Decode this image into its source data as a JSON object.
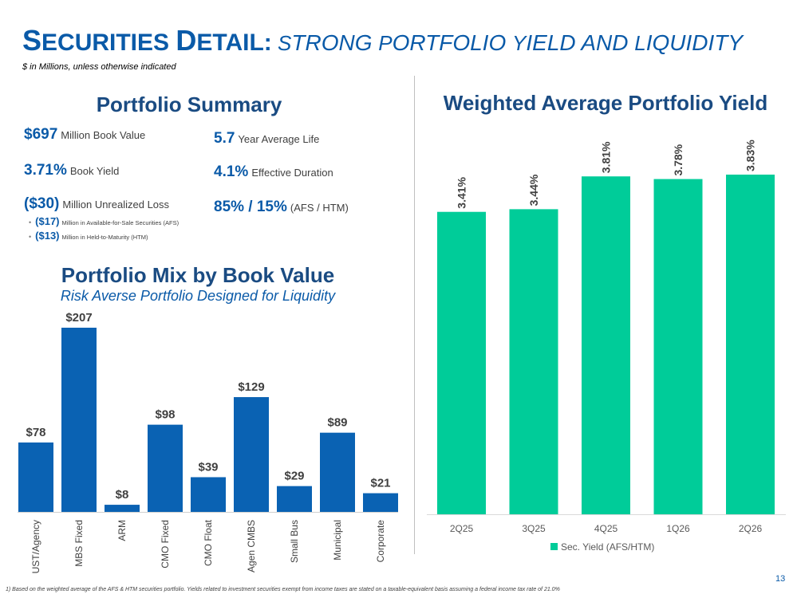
{
  "header": {
    "title_main_initial": "S",
    "title_main_rest": "ECURITIES ",
    "title_second_initial": "D",
    "title_second_rest": "ETAIL:",
    "title_sub": " S|TRONG |P|ORTFOLIO |Y|IELD AND |L|IQUIDITY",
    "units_note": "$ in Millions, unless otherwise indicated"
  },
  "summary": {
    "title": "Portfolio Summary",
    "left_metrics": [
      {
        "value": "$697",
        "label": "Million Book Value"
      },
      {
        "value": "3.71%",
        "label": "Book Yield"
      },
      {
        "value": "($30)",
        "label": "Million Unrealized Loss"
      }
    ],
    "bullets": [
      {
        "value": "($17)",
        "label": "Million in Available-for-Sale Securities (AFS)"
      },
      {
        "value": "($13)",
        "label": "Million in Held-to-Maturity (HTM)"
      }
    ],
    "right_metrics": [
      {
        "value": "5.7",
        "label": "Year Average Life"
      },
      {
        "value": "4.1%",
        "label": "Effective Duration"
      },
      {
        "value": "85% / 15%",
        "label": "(AFS / HTM)"
      }
    ]
  },
  "mix": {
    "title": "Portfolio Mix by Book Value",
    "subtitle": "Risk Averse Portfolio Designed for Liquidity"
  },
  "yield": {
    "title": "Weighted Average Portfolio Yield"
  },
  "chart_data": [
    {
      "type": "bar",
      "title": "Portfolio Mix by Book Value",
      "categories": [
        "UST/Agency",
        "MBS Fixed",
        "ARM",
        "CMO Fixed",
        "CMO Float",
        "Agen CMBS",
        "Small Bus",
        "Municipal",
        "Corporate"
      ],
      "values": [
        78,
        207,
        8,
        98,
        39,
        129,
        29,
        89,
        21
      ],
      "data_labels": [
        "$78",
        "$207",
        "$8",
        "$98",
        "$39",
        "$129",
        "$29",
        "$89",
        "$21"
      ],
      "ylim": [
        0,
        207
      ],
      "color": "#0a62b3",
      "grid": false
    },
    {
      "type": "bar",
      "title": "Weighted Average Portfolio Yield",
      "categories": [
        "2Q25",
        "3Q25",
        "4Q25",
        "1Q26",
        "2Q26"
      ],
      "series": [
        {
          "name": "Sec. Yield (AFS/HTM)",
          "values": [
            3.41,
            3.44,
            3.81,
            3.78,
            3.83
          ]
        }
      ],
      "data_labels": [
        "3.41%",
        "3.44%",
        "3.81%",
        "3.78%",
        "3.83%"
      ],
      "ylim": [
        0,
        3.83
      ],
      "legend": "bottom",
      "color": "#00cc99",
      "grid": false
    }
  ],
  "footer": {
    "footnote": "1)  Based on the weighted average of the AFS & HTM securities portfolio. Yields related to investment securities exempt from income taxes are stated on a taxable-equivalent basis assuming a federal income tax rate of 21.0%",
    "page_number": "13"
  }
}
